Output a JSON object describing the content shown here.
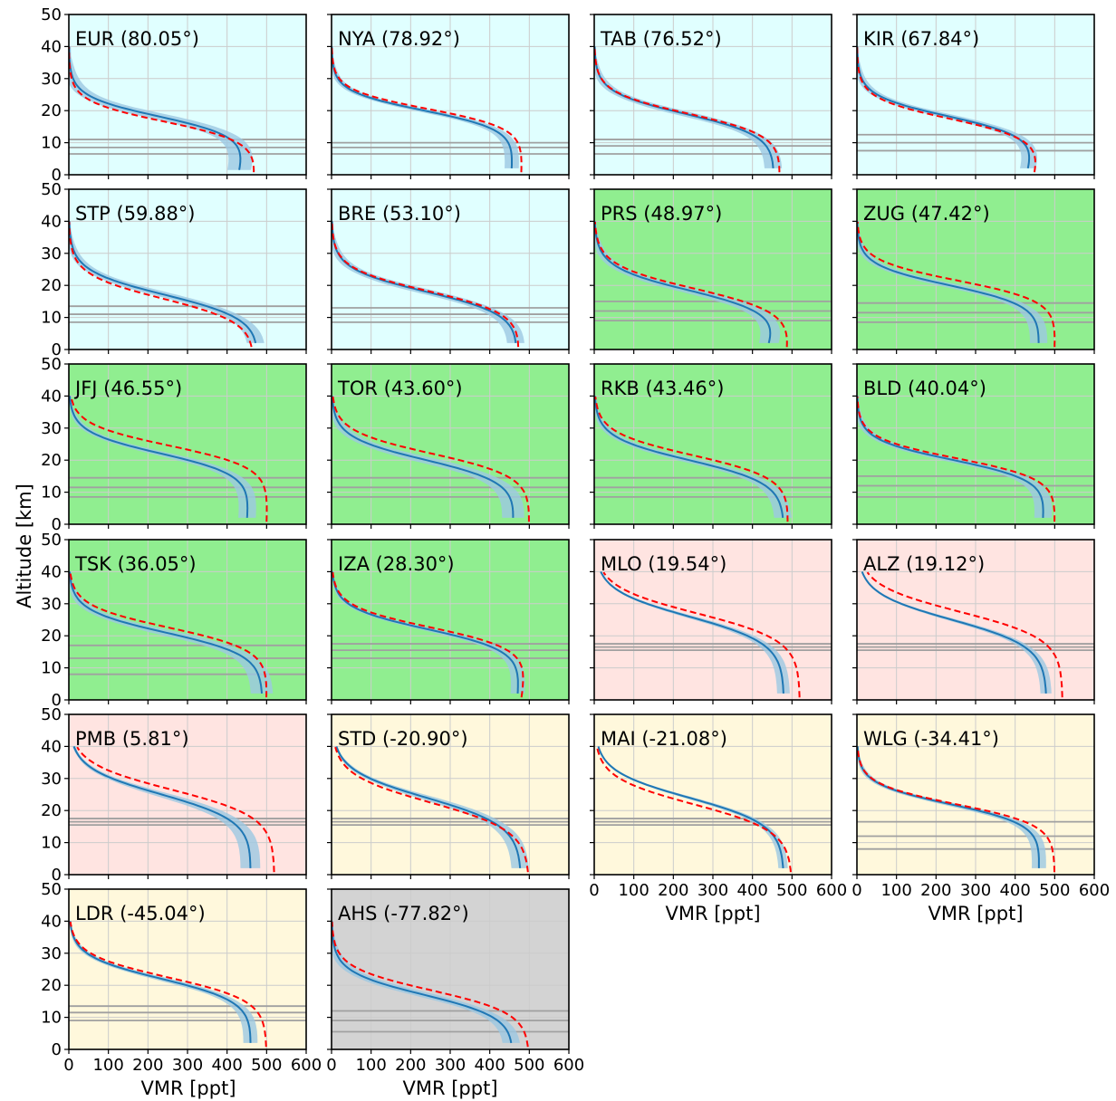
{
  "figure": {
    "ylabel": "Altitude [km]",
    "xlabel": "VMR [ppt]",
    "colors": {
      "polar": "#e0ffff",
      "midlatitude": "#90ee90",
      "tropical": "#ffe4e1",
      "southern": "#fff8dc",
      "antarctic": "#d3d3d3",
      "mean_line": "#1f77b4",
      "spread_band": "#9cc8e2",
      "reference_line": "#ff0000",
      "level_line": "#a0a0a0",
      "grid": "#cccccc"
    }
  },
  "chart_data": {
    "type": "line",
    "xlim": [
      0,
      600
    ],
    "ylim": [
      0,
      50
    ],
    "xticks": [
      0,
      100,
      200,
      300,
      400,
      500,
      600
    ],
    "yticks": [
      0,
      10,
      20,
      30,
      40,
      50
    ],
    "grid": true,
    "panels": [
      {
        "title": "EUR (80.05°)",
        "band": "polar",
        "a": 18,
        "w": 3.2,
        "m1": 430,
        "m2": 470,
        "s": 30,
        "r1": 470,
        "r2": 490,
        "ro": -1.5,
        "lv": [
          6.5,
          8.5,
          11
        ]
      },
      {
        "title": "NYA (78.92°)",
        "band": "polar",
        "a": 20,
        "w": 3.0,
        "m1": 455,
        "m2": 470,
        "s": 18,
        "r1": 480,
        "r2": 490,
        "ro": 0.5,
        "lv": [
          6.5,
          8.5,
          10
        ]
      },
      {
        "title": "TAB (76.52°)",
        "band": "polar",
        "a": 19,
        "w": 3.4,
        "m1": 455,
        "m2": 460,
        "s": 22,
        "r1": 470,
        "r2": 480,
        "ro": 0,
        "lv": [
          6.5,
          9,
          11
        ]
      },
      {
        "title": "KIR (67.84°)",
        "band": "polar",
        "a": 18,
        "w": 3.3,
        "m1": 430,
        "m2": 480,
        "s": 20,
        "r1": 450,
        "r2": 490,
        "ro": -0.8,
        "lv": [
          7.5,
          10,
          12.5
        ]
      },
      {
        "title": "STP (59.88°)",
        "band": "polar",
        "a": 17,
        "w": 3.8,
        "m1": 480,
        "m2": 490,
        "s": 22,
        "r1": 470,
        "r2": 480,
        "ro": -1.2,
        "lv": [
          8.5,
          11,
          13.5
        ]
      },
      {
        "title": "BRE (53.10°)",
        "band": "polar",
        "a": 18,
        "w": 3.6,
        "m1": 470,
        "m2": 480,
        "s": 22,
        "r1": 475,
        "r2": 490,
        "ro": 0.2,
        "lv": [
          8.5,
          11,
          13
        ]
      },
      {
        "title": "PRS (48.97°)",
        "band": "midlatitude",
        "a": 18,
        "w": 3.8,
        "m1": 440,
        "m2": 510,
        "s": 25,
        "r1": 490,
        "r2": 520,
        "ro": 0.8,
        "lv": [
          9,
          12,
          15
        ]
      },
      {
        "title": "ZUG (47.42°)",
        "band": "midlatitude",
        "a": 20,
        "w": 3.2,
        "m1": 460,
        "m2": 470,
        "s": 22,
        "r1": 500,
        "r2": 510,
        "ro": 1.5,
        "lv": [
          8.5,
          11.5,
          14.5
        ]
      },
      {
        "title": "JFJ (46.55°)",
        "band": "midlatitude",
        "a": 22,
        "w": 3.4,
        "m1": 450,
        "m2": 470,
        "s": 22,
        "r1": 500,
        "r2": 510,
        "ro": 2.5,
        "lv": [
          8.5,
          11.5,
          14.5
        ]
      },
      {
        "title": "TOR (43.60°)",
        "band": "midlatitude",
        "a": 20,
        "w": 3.6,
        "m1": 460,
        "m2": 480,
        "s": 28,
        "r1": 500,
        "r2": 510,
        "ro": 2,
        "lv": [
          8.5,
          11.5,
          14.5
        ]
      },
      {
        "title": "RKB (43.46°)",
        "band": "midlatitude",
        "a": 20,
        "w": 3.6,
        "m1": 480,
        "m2": 480,
        "s": 22,
        "r1": 490,
        "r2": 500,
        "ro": 1.5,
        "lv": [
          8.5,
          11.5,
          14.5
        ]
      },
      {
        "title": "BLD (40.04°)",
        "band": "midlatitude",
        "a": 20,
        "w": 3.2,
        "m1": 470,
        "m2": 490,
        "s": 22,
        "r1": 500,
        "r2": 510,
        "ro": 0.5,
        "lv": [
          8.5,
          12,
          15
        ]
      },
      {
        "title": "TSK (36.05°)",
        "band": "midlatitude",
        "a": 21,
        "w": 3.5,
        "m1": 490,
        "m2": 490,
        "s": 28,
        "r1": 500,
        "r2": 510,
        "ro": 1.5,
        "lv": [
          8,
          13,
          17
        ]
      },
      {
        "title": "IZA (28.30°)",
        "band": "midlatitude",
        "a": 22,
        "w": 3.4,
        "m1": 470,
        "m2": 490,
        "s": 18,
        "r1": 480,
        "r2": 510,
        "ro": 0.5,
        "lv": [
          13,
          15.5,
          17.5
        ]
      },
      {
        "title": "MLO (19.54°)",
        "band": "tropical",
        "a": 26,
        "w": 4.2,
        "m1": 480,
        "m2": 480,
        "s": 16,
        "r1": 520,
        "r2": 520,
        "ro": 1,
        "lv": [
          15.5,
          16.5,
          17.5
        ]
      },
      {
        "title": "ALZ (19.12°)",
        "band": "tropical",
        "a": 25,
        "w": 4.2,
        "m1": 480,
        "m2": 480,
        "s": 14,
        "r1": 520,
        "r2": 520,
        "ro": 2.5,
        "lv": [
          15.5,
          16.5,
          17.5
        ]
      },
      {
        "title": "PMB (5.81°)",
        "band": "tropical",
        "a": 25,
        "w": 4.2,
        "m1": 460,
        "m2": 470,
        "s": 25,
        "r1": 520,
        "r2": 520,
        "ro": 1.5,
        "lv": [
          15.5,
          16.5,
          17.5
        ]
      },
      {
        "title": "STD (-20.90°)",
        "band": "southern",
        "a": 24,
        "w": 4.4,
        "m1": 480,
        "m2": 480,
        "s": 22,
        "r1": 500,
        "r2": 500,
        "ro": -1.5,
        "lv": [
          15.5,
          16.5,
          17.5
        ]
      },
      {
        "title": "MAI (-21.08°)",
        "band": "southern",
        "a": 24,
        "w": 4.2,
        "m1": 480,
        "m2": 480,
        "s": 12,
        "r1": 500,
        "r2": 500,
        "ro": -2,
        "lv": [
          15.5,
          16.5,
          17.5
        ]
      },
      {
        "title": "WLG (-34.41°)",
        "band": "southern",
        "a": 22,
        "w": 3.2,
        "m1": 460,
        "m2": 470,
        "s": 18,
        "r1": 500,
        "r2": 500,
        "ro": 0,
        "lv": [
          8,
          12,
          16.5
        ]
      },
      {
        "title": "LDR (-45.04°)",
        "band": "southern",
        "a": 22,
        "w": 3.6,
        "m1": 460,
        "m2": 470,
        "s": 18,
        "r1": 500,
        "r2": 500,
        "ro": 0.5,
        "lv": [
          9,
          11.5,
          13.5
        ]
      },
      {
        "title": "AHS (-77.82°)",
        "band": "antarctic",
        "a": 17,
        "w": 3.6,
        "m1": 460,
        "m2": 470,
        "s": 22,
        "r1": 500,
        "r2": 500,
        "ro": 1.5,
        "lv": [
          5.5,
          9,
          12
        ]
      }
    ]
  }
}
